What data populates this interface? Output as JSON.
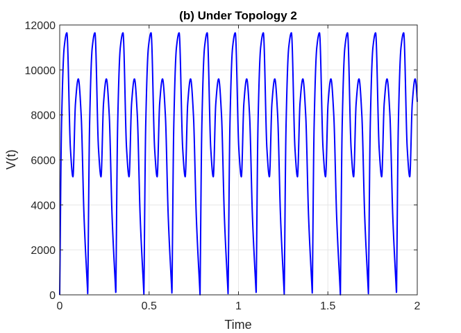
{
  "chart_data": {
    "type": "line",
    "title": "(b) Under Topology 2",
    "xlabel": "Time",
    "ylabel": "V(t)",
    "xlim": [
      0,
      2
    ],
    "ylim": [
      0,
      12000
    ],
    "xticks": [
      0,
      0.5,
      1,
      1.5,
      2
    ],
    "xtick_labels": [
      "0",
      "0.5",
      "1",
      "1.5",
      "2"
    ],
    "yticks": [
      0,
      2000,
      4000,
      6000,
      8000,
      10000,
      12000
    ],
    "ytick_labels": [
      "0",
      "2000",
      "4000",
      "6000",
      "8000",
      "10000",
      "12000"
    ],
    "grid": true,
    "legend": "none",
    "series": [
      {
        "color": "#0000ff",
        "period": 0.157,
        "cycle_shape": {
          "t": [
            0,
            0.01,
            0.025,
            0.04,
            0.06,
            0.074,
            0.088,
            0.104,
            0.12,
            0.136,
            0.157
          ],
          "v": [
            0,
            7500,
            11000,
            11650,
            6500,
            5250,
            8500,
            9600,
            8000,
            3500,
            0
          ]
        }
      }
    ]
  }
}
